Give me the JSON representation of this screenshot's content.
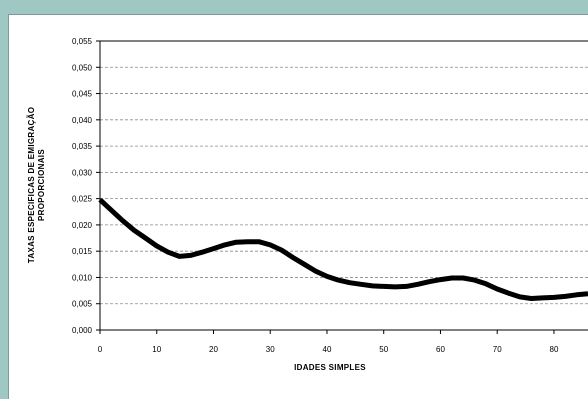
{
  "chart_data": {
    "type": "line",
    "title": "",
    "xlabel": "IDADES SIMPLES",
    "ylabel_lines": [
      "TAXAS ESPECIFICAS DE EMIGRAÇÃO",
      "PROPORCIONAIS"
    ],
    "xlim": [
      0,
      86
    ],
    "ylim": [
      0,
      0.055
    ],
    "x_ticks": [
      0,
      10,
      20,
      30,
      40,
      50,
      60,
      70,
      80
    ],
    "x_tick_labels": [
      "0",
      "10",
      "20",
      "30",
      "40",
      "50",
      "60",
      "70",
      "80"
    ],
    "y_ticks": [
      0,
      0.005,
      0.01,
      0.015,
      0.02,
      0.025,
      0.03,
      0.035,
      0.04,
      0.045,
      0.05,
      0.055
    ],
    "y_tick_labels": [
      "0,000",
      "0,005",
      "0,010",
      "0,015",
      "0,020",
      "0,025",
      "0,030",
      "0,035",
      "0,040",
      "0,045",
      "0,050",
      "0,055"
    ],
    "grid": true,
    "series": [
      {
        "color": "#000000",
        "x": [
          0,
          2,
          4,
          6,
          8,
          10,
          12,
          14,
          16,
          18,
          20,
          22,
          24,
          26,
          28,
          30,
          32,
          34,
          36,
          38,
          40,
          42,
          44,
          46,
          48,
          50,
          52,
          54,
          56,
          58,
          60,
          62,
          64,
          66,
          68,
          70,
          72,
          74,
          76,
          78,
          80,
          82,
          84,
          86
        ],
        "y": [
          0.0248,
          0.0228,
          0.0208,
          0.019,
          0.0175,
          0.016,
          0.0148,
          0.014,
          0.0142,
          0.0148,
          0.0155,
          0.0162,
          0.0167,
          0.0168,
          0.0168,
          0.0162,
          0.0152,
          0.0138,
          0.0125,
          0.0112,
          0.0102,
          0.0095,
          0.009,
          0.0087,
          0.0084,
          0.0083,
          0.0082,
          0.0083,
          0.0087,
          0.0092,
          0.0096,
          0.0099,
          0.0099,
          0.0095,
          0.0088,
          0.0078,
          0.007,
          0.0063,
          0.006,
          0.0061,
          0.0062,
          0.0064,
          0.0067,
          0.0069
        ]
      }
    ]
  }
}
